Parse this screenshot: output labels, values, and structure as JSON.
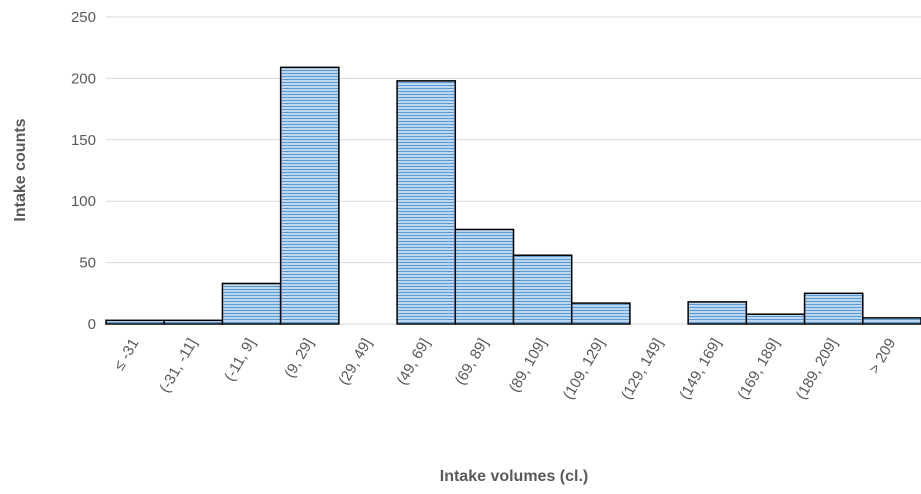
{
  "chart_data": {
    "type": "bar",
    "title": "",
    "xlabel": "Intake volumes (cl.)",
    "ylabel": "Intake counts",
    "categories": [
      "≤ -31",
      "(-31, -11]",
      "(-11, 9]",
      "(9, 29]",
      "(29, 49]",
      "(49, 69]",
      "(69, 89]",
      "(89, 109]",
      "(109, 129]",
      "(129, 149]",
      "(149, 169]",
      "(169, 189]",
      "(189, 209]",
      "> 209"
    ],
    "values": [
      3,
      3,
      33,
      209,
      0,
      198,
      77,
      56,
      17,
      0,
      18,
      8,
      25,
      5
    ],
    "ylim": [
      0,
      250
    ],
    "yticks": [
      0,
      50,
      100,
      150,
      200,
      250
    ],
    "grid": true,
    "legend": "none",
    "colors": {
      "bar_fill": "#bdd7ee",
      "bar_hatch": "#5b9bd5",
      "bar_stroke": "#000000",
      "grid": "#d9d9d9",
      "text": "#595959"
    }
  }
}
